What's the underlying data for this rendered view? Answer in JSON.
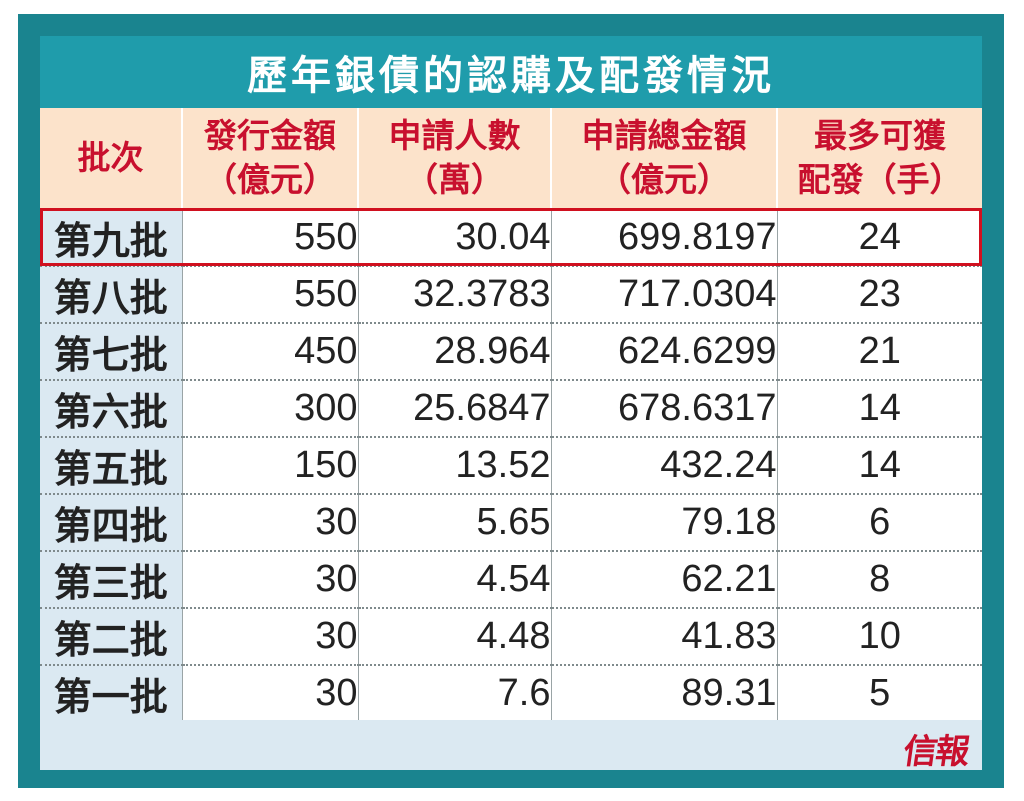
{
  "title": "歷年銀債的認購及配發情況",
  "headers": [
    {
      "line1": "批次",
      "line2": ""
    },
    {
      "line1": "發行金額",
      "line2": "（億元）"
    },
    {
      "line1": "申請人數",
      "line2": "（萬）"
    },
    {
      "line1": "申請總金額",
      "line2": "（億元）"
    },
    {
      "line1": "最多可獲",
      "line2": "配發（手）"
    }
  ],
  "rows": [
    {
      "batch": "第九批",
      "issue": "550",
      "applicants": "30.04",
      "total": "699.8197",
      "max_lots": "24",
      "highlighted": true
    },
    {
      "batch": "第八批",
      "issue": "550",
      "applicants": "32.3783",
      "total": "717.0304",
      "max_lots": "23"
    },
    {
      "batch": "第七批",
      "issue": "450",
      "applicants": "28.964",
      "total": "624.6299",
      "max_lots": "21"
    },
    {
      "batch": "第六批",
      "issue": "300",
      "applicants": "25.6847",
      "total": "678.6317",
      "max_lots": "14"
    },
    {
      "batch": "第五批",
      "issue": "150",
      "applicants": "13.52",
      "total": "432.24",
      "max_lots": "14"
    },
    {
      "batch": "第四批",
      "issue": "30",
      "applicants": "5.65",
      "total": "79.18",
      "max_lots": "6"
    },
    {
      "batch": "第三批",
      "issue": "30",
      "applicants": "4.54",
      "total": "62.21",
      "max_lots": "8"
    },
    {
      "batch": "第二批",
      "issue": "30",
      "applicants": "4.48",
      "total": "41.83",
      "max_lots": "10"
    },
    {
      "batch": "第一批",
      "issue": "30",
      "applicants": "7.6",
      "total": "89.31",
      "max_lots": "5"
    }
  ],
  "logo": "信報",
  "colors": {
    "frame": "#1a848f",
    "title_bar": "#1f9cab",
    "header_bg": "#fce3cb",
    "header_text": "#c8102e",
    "batch_bg": "#dbe9f2",
    "batch_text": "#157f8c",
    "highlight_border": "#d0101f"
  }
}
